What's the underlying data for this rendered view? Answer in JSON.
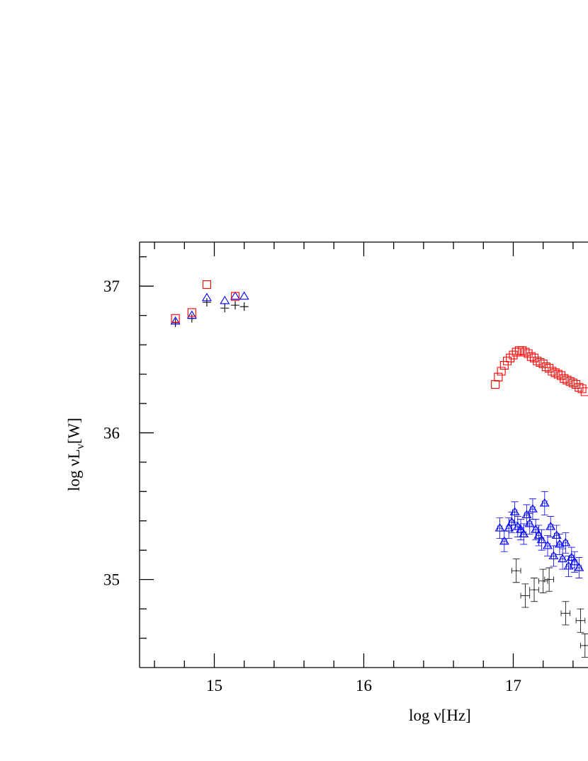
{
  "chart_data": {
    "type": "scatter",
    "xlabel": {
      "main": "log ν[Hz]"
    },
    "ylabel": {
      "main": "log νL",
      "sub": "ν",
      "unit": "[W]"
    },
    "xlim": [
      14.5,
      17.5
    ],
    "ylim": [
      34.4,
      37.3
    ],
    "xticks": [
      15,
      16,
      17
    ],
    "yticks": [
      35,
      36,
      37
    ],
    "xminorticks": [
      14.6,
      14.8,
      15.2,
      15.4,
      15.6,
      15.8,
      16.2,
      16.4,
      16.6,
      16.8,
      17.2,
      17.4
    ],
    "yminorticks": [
      34.6,
      34.8,
      35.2,
      35.4,
      35.6,
      35.8,
      36.2,
      36.4,
      36.6,
      36.8,
      37.2
    ],
    "series": [
      {
        "marker": "plus",
        "color": "#000000",
        "x": [
          14.74,
          14.85,
          14.95,
          15.07,
          15.14,
          15.2
        ],
        "values": [
          36.75,
          36.78,
          36.89,
          36.85,
          36.87,
          36.86
        ]
      },
      {
        "marker": "triangle",
        "color": "#0000ff",
        "x": [
          14.74,
          14.85,
          14.95,
          15.07,
          15.14,
          15.2
        ],
        "values": [
          36.76,
          36.8,
          36.92,
          36.9,
          36.93,
          36.93
        ]
      },
      {
        "marker": "square",
        "color": "#ff0000",
        "x": [
          14.74,
          14.85,
          14.95,
          15.14
        ],
        "values": [
          36.78,
          36.82,
          37.01,
          36.93
        ]
      },
      {
        "marker": "square",
        "color": "#ff0000",
        "x": [
          16.88,
          16.9,
          16.92,
          16.94,
          16.96,
          16.98,
          17.0,
          17.02,
          17.04,
          17.06,
          17.08,
          17.1,
          17.12,
          17.14,
          17.16,
          17.18,
          17.2,
          17.22,
          17.24,
          17.26,
          17.28,
          17.3,
          17.32,
          17.34,
          17.36,
          17.38,
          17.4,
          17.42,
          17.44,
          17.46,
          17.48
        ],
        "values": [
          36.33,
          36.38,
          36.42,
          36.46,
          36.49,
          36.51,
          36.53,
          36.55,
          36.56,
          36.56,
          36.55,
          36.54,
          36.52,
          36.51,
          36.49,
          36.48,
          36.47,
          36.45,
          36.44,
          36.42,
          36.41,
          36.4,
          36.39,
          36.37,
          36.36,
          36.35,
          36.34,
          36.33,
          36.31,
          36.3,
          36.28
        ]
      },
      {
        "marker": "triangle",
        "color": "#0000ff",
        "x": [
          16.91,
          16.94,
          16.97,
          16.99,
          17.01,
          17.03,
          17.05,
          17.07,
          17.09,
          17.11,
          17.13,
          17.15,
          17.17,
          17.19,
          17.21,
          17.23,
          17.25,
          17.27,
          17.29,
          17.31,
          17.33,
          17.35,
          17.37,
          17.39,
          17.41,
          17.44
        ],
        "values": [
          35.35,
          35.26,
          35.35,
          35.39,
          35.46,
          35.36,
          35.34,
          35.31,
          35.44,
          35.38,
          35.48,
          35.34,
          35.3,
          35.27,
          35.52,
          35.23,
          35.36,
          35.16,
          35.3,
          35.24,
          35.14,
          35.25,
          35.09,
          35.15,
          35.12,
          35.08
        ],
        "xerr": [
          0.015,
          0.015,
          0.015,
          0.015,
          0.015,
          0.015,
          0.015,
          0.015,
          0.015,
          0.015,
          0.015,
          0.015,
          0.015,
          0.015,
          0.015,
          0.015,
          0.015,
          0.015,
          0.015,
          0.015,
          0.015,
          0.015,
          0.015,
          0.015,
          0.015,
          0.015
        ],
        "yerr": [
          0.07,
          0.07,
          0.07,
          0.07,
          0.07,
          0.07,
          0.07,
          0.07,
          0.07,
          0.07,
          0.07,
          0.07,
          0.07,
          0.07,
          0.08,
          0.07,
          0.07,
          0.07,
          0.07,
          0.07,
          0.07,
          0.07,
          0.07,
          0.07,
          0.07,
          0.07
        ]
      },
      {
        "marker": "cross",
        "color": "#000000",
        "x": [
          17.02,
          17.08,
          17.14,
          17.2,
          17.24,
          17.35,
          17.45,
          17.48
        ],
        "values": [
          35.06,
          34.89,
          34.93,
          34.99,
          35.0,
          34.77,
          34.72,
          34.55
        ],
        "xerr": [
          0.03,
          0.03,
          0.03,
          0.03,
          0.03,
          0.03,
          0.03,
          0.03
        ],
        "yerr": [
          0.08,
          0.08,
          0.08,
          0.08,
          0.08,
          0.08,
          0.08,
          0.08
        ]
      }
    ]
  }
}
